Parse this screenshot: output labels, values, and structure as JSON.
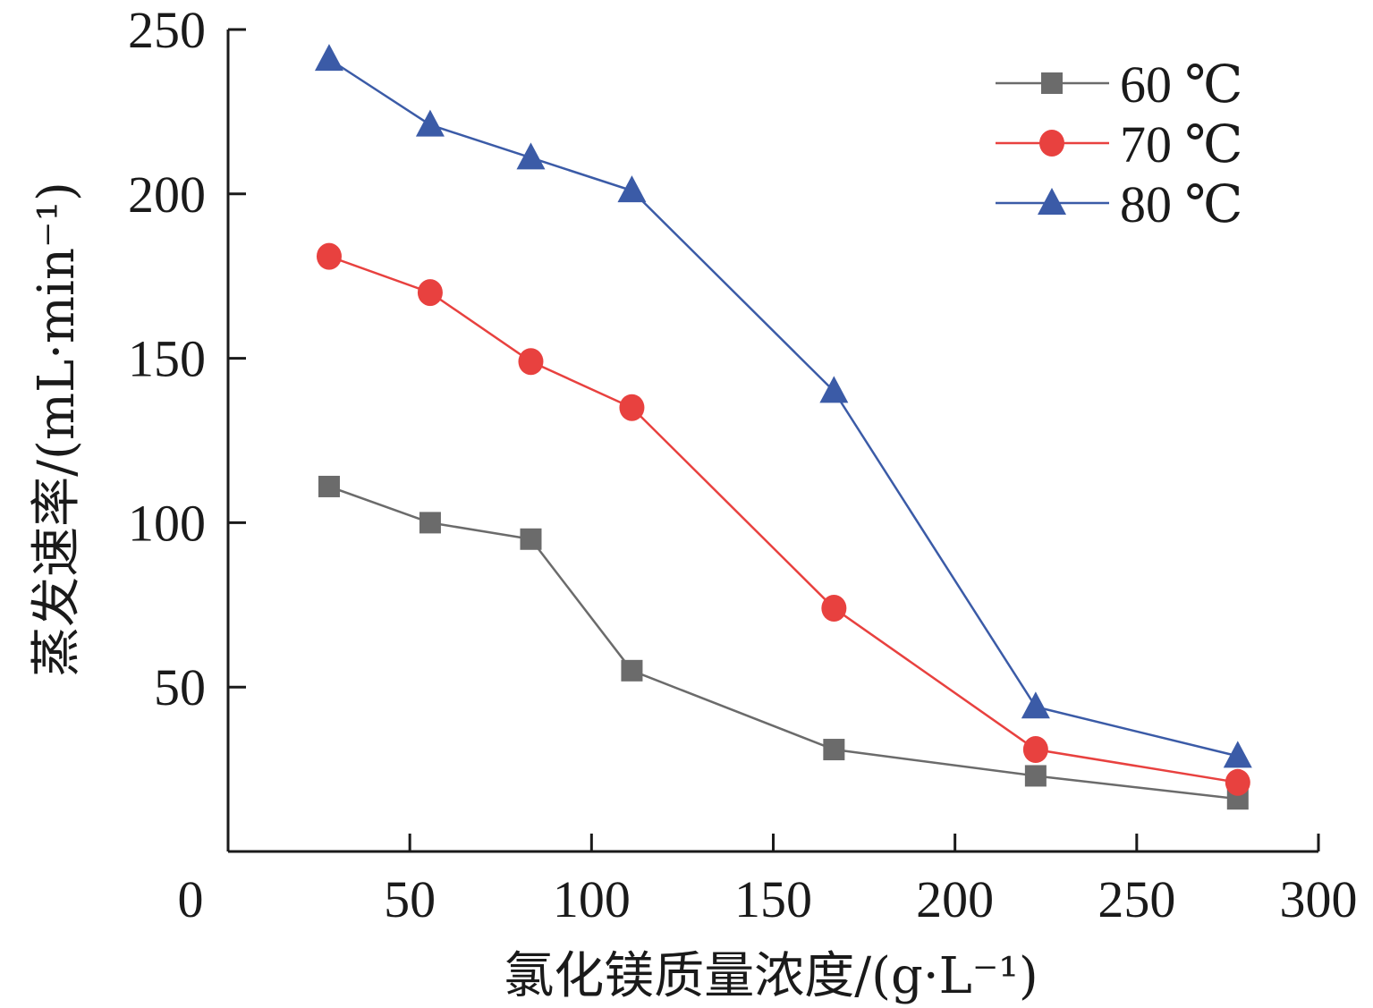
{
  "chart_data": {
    "type": "line",
    "title": "",
    "xlabel": "氯化镁质量浓度/(g·L⁻¹)",
    "ylabel": "蒸发速率/(mL·min⁻¹)",
    "xlim": [
      0,
      300
    ],
    "ylim": [
      0,
      250
    ],
    "x_ticks": [
      0,
      50,
      100,
      150,
      200,
      250,
      300
    ],
    "y_ticks": [
      50,
      100,
      150,
      200,
      250
    ],
    "x_tick_labels": [
      "0",
      "50",
      "100",
      "150",
      "200",
      "250",
      "300"
    ],
    "y_tick_labels": [
      "50",
      "100",
      "150",
      "200",
      "250"
    ],
    "grid": false,
    "legend_position": "top-right",
    "series": [
      {
        "name": "60 ℃",
        "color": "#6b6b6b",
        "marker": "square",
        "x": [
          27.8,
          55.6,
          83.3,
          111.1,
          166.7,
          222.2,
          277.8
        ],
        "y": [
          111,
          100,
          95,
          55,
          31,
          23,
          16
        ]
      },
      {
        "name": "70 ℃",
        "color": "#e8413f",
        "marker": "circle",
        "x": [
          27.8,
          55.6,
          83.3,
          111.1,
          166.7,
          222.2,
          277.8
        ],
        "y": [
          181,
          170,
          149,
          135,
          74,
          31,
          21
        ]
      },
      {
        "name": "80 ℃",
        "color": "#3b5ba7",
        "marker": "triangle",
        "x": [
          27.8,
          55.6,
          83.3,
          111.1,
          166.7,
          222.2,
          277.8
        ],
        "y": [
          241,
          221,
          211,
          201,
          140,
          44,
          29
        ]
      }
    ]
  }
}
